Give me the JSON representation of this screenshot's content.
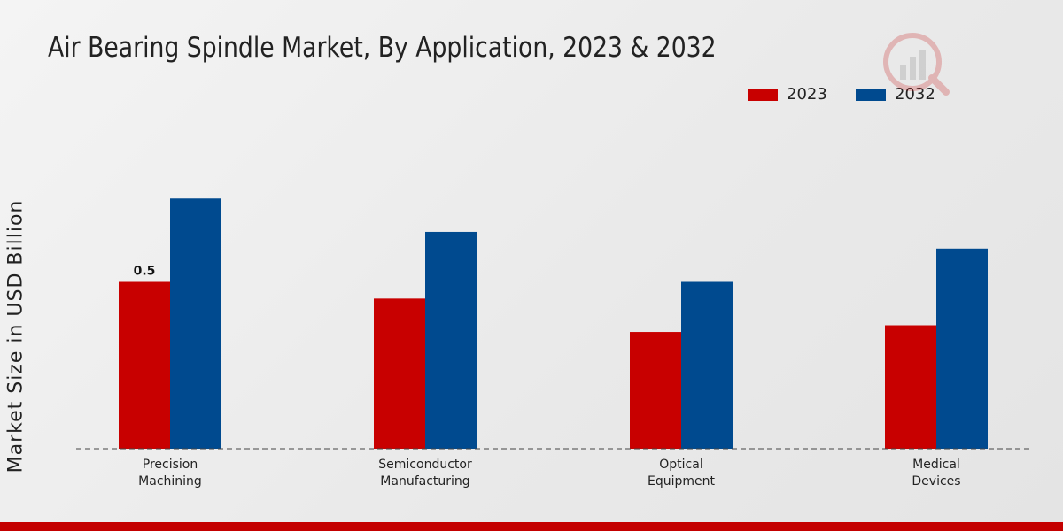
{
  "chart_data": {
    "type": "bar",
    "title": "Air Bearing Spindle Market, By Application, 2023 & 2032",
    "xlabel": "",
    "ylabel": "Market Size in USD Billion",
    "categories": [
      "Precision\nMachining",
      "Semiconductor\nManufacturing",
      "Optical\nEquipment",
      "Medical\nDevices"
    ],
    "series": [
      {
        "name": "2023",
        "color": "#c80000",
        "values": [
          0.5,
          0.45,
          0.35,
          0.37
        ]
      },
      {
        "name": "2032",
        "color": "#004a8f",
        "values": [
          0.75,
          0.65,
          0.5,
          0.6
        ]
      }
    ],
    "data_labels": [
      {
        "series": 0,
        "index": 0,
        "text": "0.5"
      }
    ],
    "ylim": [
      0,
      1.0
    ],
    "grid": false,
    "legend_position": "top-right"
  }
}
